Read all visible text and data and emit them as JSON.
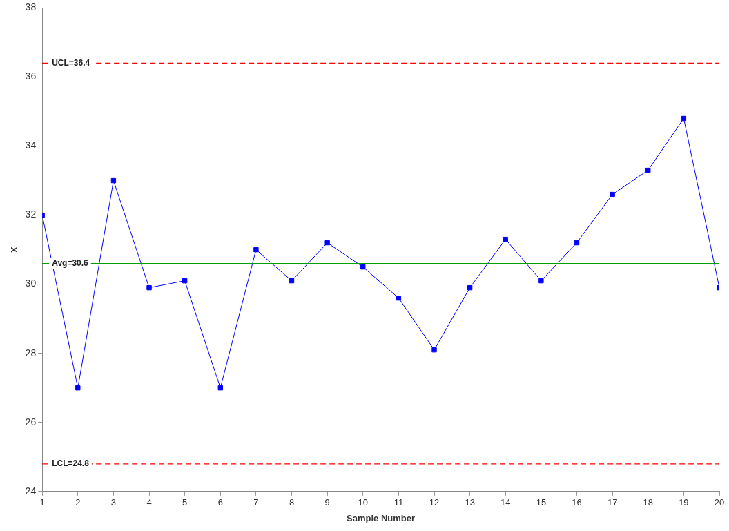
{
  "chart_data": {
    "type": "line",
    "xlabel": "Sample Number",
    "ylabel": "X",
    "x": [
      1,
      2,
      3,
      4,
      5,
      6,
      7,
      8,
      9,
      10,
      11,
      12,
      13,
      14,
      15,
      16,
      17,
      18,
      19,
      20
    ],
    "series": [
      {
        "color": "#0000ff",
        "values": [
          32.0,
          27.0,
          33.0,
          29.9,
          30.1,
          27.0,
          31.0,
          30.1,
          31.2,
          30.5,
          29.6,
          28.1,
          29.9,
          31.3,
          30.1,
          31.2,
          32.6,
          33.3,
          34.8,
          29.9
        ]
      }
    ],
    "xlim": [
      1,
      20
    ],
    "xticks": [
      1,
      2,
      3,
      4,
      5,
      6,
      7,
      8,
      9,
      10,
      11,
      12,
      13,
      14,
      15,
      16,
      17,
      18,
      19,
      20
    ],
    "ylim": [
      24,
      38
    ],
    "yticks": [
      24,
      26,
      28,
      30,
      32,
      34,
      36,
      38
    ],
    "ref_lines": [
      {
        "axis": "y",
        "value": 36.4,
        "label": "UCL=36.4",
        "color": "#ff0000",
        "line_style": "dashed"
      },
      {
        "axis": "y",
        "value": 30.6,
        "label": "Avg=30.6",
        "color": "#00a000",
        "line_style": "solid"
      },
      {
        "axis": "y",
        "value": 24.8,
        "label": "LCL=24.8",
        "color": "#ff0000",
        "line_style": "dashed"
      }
    ],
    "marker": "square",
    "line_style": "solid",
    "grid": false,
    "legend": false
  }
}
